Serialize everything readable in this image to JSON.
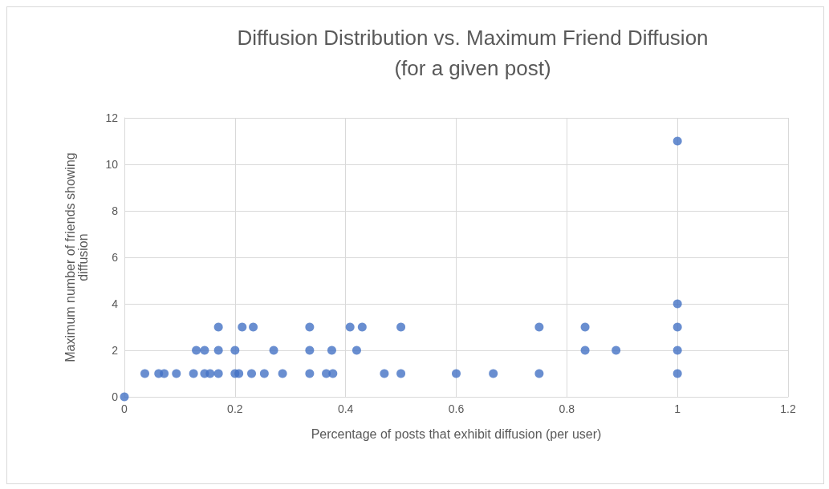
{
  "chart_data": {
    "type": "scatter",
    "title": "Diffusion Distribution vs. Maximum Friend Diffusion\n(for a given post)",
    "xlabel": "Percentage of posts that exhibit diffusion (per user)",
    "ylabel": "Maximum number of friends showing\ndiffusion",
    "series": [
      {
        "color": "#4472c4",
        "x": [
          0,
          0.037,
          0.062,
          0.072,
          0.094,
          0.125,
          0.145,
          0.155,
          0.17,
          0.2,
          0.207,
          0.23,
          0.253,
          0.286,
          0.335,
          0.365,
          0.377,
          0.47,
          0.5,
          0.6,
          0.667,
          0.75,
          1,
          0.13,
          0.145,
          0.17,
          0.2,
          0.27,
          0.335,
          0.375,
          0.42,
          0.833,
          0.889,
          1,
          0.17,
          0.213,
          0.233,
          0.335,
          0.408,
          0.43,
          0.5,
          0.75,
          0.833,
          1,
          1,
          1
        ],
        "values": [
          0,
          1,
          1,
          1,
          1,
          1,
          1,
          1,
          1,
          1,
          1,
          1,
          1,
          1,
          1,
          1,
          1,
          1,
          1,
          1,
          1,
          1,
          1,
          2,
          2,
          2,
          2,
          2,
          2,
          2,
          2,
          2,
          2,
          2,
          3,
          3,
          3,
          3,
          3,
          3,
          3,
          3,
          3,
          3,
          4,
          11
        ]
      }
    ],
    "xlim": [
      0,
      1.2
    ],
    "xticks": [
      0,
      0.2,
      0.4,
      0.6,
      0.8,
      1,
      1.2
    ],
    "ylim": [
      0,
      12
    ],
    "yticks": [
      0,
      2,
      4,
      6,
      8,
      10,
      12
    ],
    "grid": true,
    "marker": "circle"
  }
}
